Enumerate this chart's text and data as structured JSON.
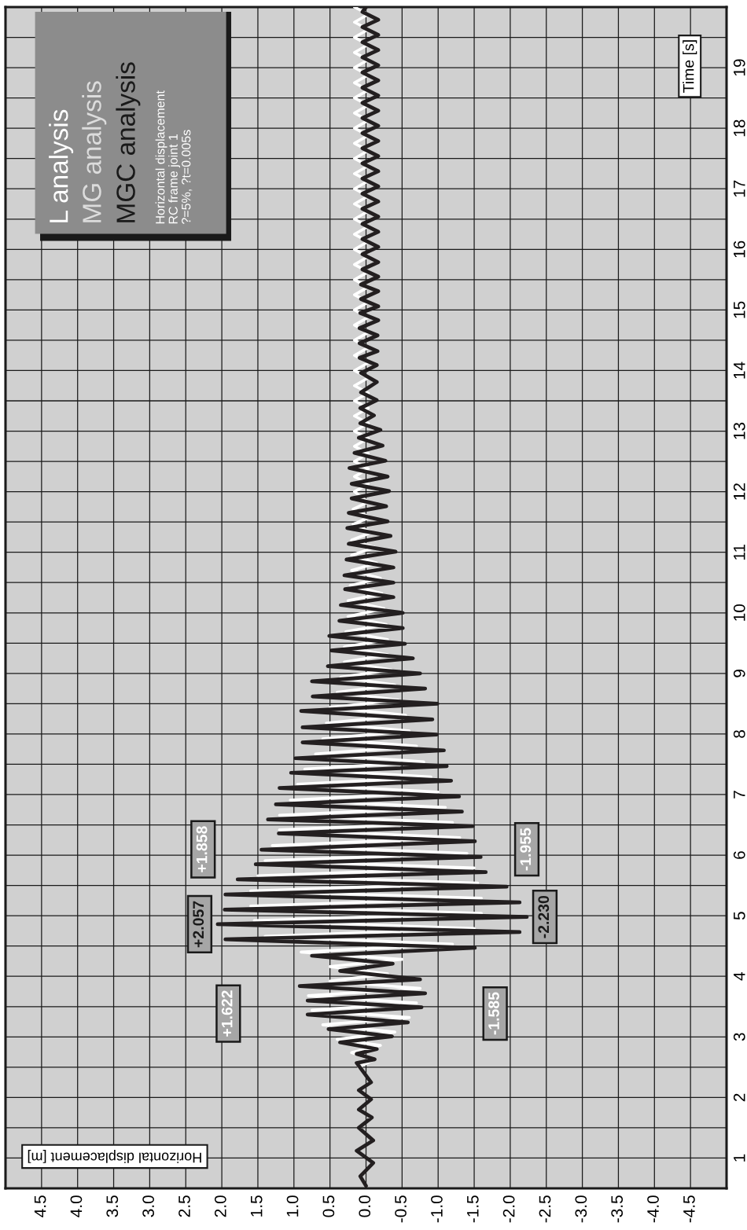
{
  "chart_data": {
    "type": "line",
    "xlabel": "Horizontal displacement [m]",
    "ylabel": "Time [s]",
    "xlim": [
      5,
      -5
    ],
    "ylim": [
      0.5,
      20
    ],
    "yticks": [
      1,
      {
        "value": 1.5,
        "label": null
      },
      2,
      {
        "value": 2.5,
        "label": null
      },
      3,
      {
        "value": 3.5,
        "label": null
      },
      4,
      {
        "value": 4.5,
        "label": null
      },
      5,
      {
        "value": 5.5,
        "label": null
      },
      6,
      {
        "value": 6.5,
        "label": null
      },
      7,
      {
        "value": 7.5,
        "label": null
      },
      8,
      {
        "value": 8.5,
        "label": null
      },
      9,
      {
        "value": 9.5,
        "label": null
      },
      10,
      {
        "value": 10.5,
        "label": null
      },
      11,
      {
        "value": 11.5,
        "label": null
      },
      12,
      {
        "value": 12.5,
        "label": null
      },
      13,
      {
        "value": 13.5,
        "label": null
      },
      14,
      {
        "value": 14.5,
        "label": null
      },
      15,
      {
        "value": 15.5,
        "label": null
      },
      16,
      {
        "value": 16.5,
        "label": null
      },
      17,
      {
        "value": 17.5,
        "label": null
      },
      18,
      {
        "value": 18.5,
        "label": null
      },
      19,
      {
        "value": 19.5,
        "label": null
      }
    ],
    "xticks": [
      -4.5,
      {
        "value": -4,
        "label": "-4.0"
      },
      -3.5,
      {
        "value": -3,
        "label": "-3.0"
      },
      -2.5,
      {
        "value": -2,
        "label": "-2.0"
      },
      -1.5,
      {
        "value": -1,
        "label": "-1.0"
      },
      -0.5,
      {
        "value": 0,
        "label": "0.0"
      },
      0.5,
      {
        "value": 1,
        "label": "1.0"
      },
      1.5,
      {
        "value": 2,
        "label": "2.0"
      },
      2.5,
      {
        "value": 3,
        "label": "3.0"
      },
      3.5,
      {
        "value": 4,
        "label": "4.0"
      },
      4.5
    ],
    "grid": true,
    "series": [
      {
        "color": "#ffffff",
        "values": [
          2.5,
          2.62,
          2.74,
          2.86,
          2.96,
          3.08,
          3.2,
          3.32,
          3.44,
          3.56,
          3.68,
          3.8,
          3.92,
          4.04,
          4.16,
          4.28,
          4.4,
          4.53,
          4.66,
          4.79,
          4.92,
          5.04,
          5.16,
          5.29,
          5.41,
          5.54,
          5.66,
          5.79,
          5.91,
          6.03,
          6.16,
          6.29,
          6.42,
          6.54,
          6.66,
          6.79,
          6.91,
          7.04,
          7.17,
          7.29,
          7.42,
          7.54,
          7.67,
          7.8,
          7.92,
          8.05,
          8.18,
          8.31,
          8.44,
          8.56,
          8.69,
          8.81,
          8.94,
          9.06,
          9.19,
          9.31,
          9.44,
          9.56,
          9.69,
          9.81,
          9.94,
          10.07,
          10.2,
          10.32,
          10.45,
          10.57,
          10.7,
          10.82,
          10.95,
          11.08,
          11.2,
          11.33,
          11.46,
          11.58,
          11.71,
          11.83,
          12.0,
          12.13,
          12.25,
          12.38,
          12.5,
          12.63,
          12.75,
          12.88,
          13.0,
          13.13,
          13.25,
          13.38,
          13.5,
          13.63,
          13.75,
          13.88,
          14.0,
          14.13,
          14.25,
          14.38,
          14.5,
          14.63,
          14.75,
          14.88,
          15.0,
          15.13,
          15.25,
          15.38,
          15.5,
          15.63,
          15.75,
          15.88,
          16.0,
          16.13,
          16.25,
          16.38,
          16.5,
          16.63,
          16.75,
          16.88,
          17.0,
          17.13,
          17.25,
          17.38,
          17.5,
          17.63,
          17.75,
          17.88,
          18.0,
          18.13,
          18.25,
          18.38,
          18.5,
          18.63,
          18.75,
          18.88,
          19.0,
          19.13,
          19.25,
          19.38,
          19.5,
          19.63,
          19.75,
          19.88,
          20.0
        ],
        "x": [
          0.1,
          -0.1,
          0.2,
          -0.2,
          0.4,
          -0.4,
          0.6,
          -0.6,
          0.75,
          -0.7,
          0.8,
          -0.75,
          0.5,
          -0.3,
          0.5,
          -0.5,
          0.9,
          -1.2,
          1.4,
          -1.5,
          1.55,
          -1.6,
          1.6,
          -1.6,
          1.6,
          -1.55,
          1.5,
          -1.5,
          1.4,
          -1.4,
          1.3,
          -1.3,
          1.2,
          -1.2,
          1.2,
          -1.1,
          1.05,
          -1.0,
          0.95,
          -0.9,
          0.85,
          -0.8,
          0.7,
          -0.7,
          0.6,
          -0.6,
          0.55,
          -0.55,
          0.5,
          -0.45,
          0.4,
          -0.4,
          0.35,
          -0.35,
          0.3,
          -0.3,
          0.3,
          -0.3,
          0.28,
          -0.28,
          0.25,
          -0.25,
          0.25,
          -0.22,
          0.22,
          -0.2,
          0.2,
          -0.15,
          0.2,
          -0.12,
          0.2,
          -0.08,
          0.18,
          -0.05,
          0.18,
          -0.03,
          0.16,
          -0.03,
          0.16,
          -0.03,
          0.16,
          -0.03,
          0.16,
          -0.03,
          0.16,
          -0.03,
          0.16,
          -0.03,
          0.16,
          -0.03,
          0.16,
          -0.03,
          0.16,
          -0.03,
          0.16,
          -0.03,
          0.16,
          -0.03,
          0.16,
          -0.03,
          0.16,
          -0.03,
          0.16,
          -0.03,
          0.16,
          -0.03,
          0.16,
          -0.03,
          0.16,
          -0.03,
          0.16,
          -0.03,
          0.16,
          -0.03,
          0.16,
          -0.03,
          0.16,
          -0.03,
          0.16,
          -0.03,
          0.16,
          -0.03,
          0.16,
          -0.03,
          0.16,
          -0.03,
          0.16,
          -0.03,
          0.16,
          -0.03,
          0.16,
          -0.03,
          0.16,
          -0.03,
          0.16,
          -0.03,
          0.16,
          -0.03,
          0.16,
          -0.03,
          0.16
        ]
      },
      {
        "color": "#231f20",
        "values": [
          0.54,
          0.7,
          0.92,
          1.12,
          1.29,
          1.5,
          1.67,
          1.8,
          1.97,
          2.12,
          2.25,
          2.57,
          2.63,
          2.72,
          2.8,
          2.91,
          3.01,
          3.13,
          3.24,
          3.37,
          3.49,
          3.6,
          3.72,
          3.84,
          3.95,
          4.09,
          4.21,
          4.34,
          4.47,
          4.61,
          4.73,
          4.86,
          4.98,
          5.1,
          5.22,
          5.35,
          5.48,
          5.6,
          5.72,
          5.85,
          5.97,
          6.09,
          6.23,
          6.36,
          6.48,
          6.59,
          6.72,
          6.84,
          6.97,
          7.11,
          7.23,
          7.36,
          7.47,
          7.6,
          7.73,
          7.86,
          7.99,
          8.11,
          8.24,
          8.38,
          8.5,
          8.62,
          8.75,
          8.87,
          9.0,
          9.12,
          9.25,
          9.38,
          9.49,
          9.62,
          9.75,
          9.87,
          10.0,
          10.13,
          10.26,
          10.39,
          10.5,
          10.62,
          10.75,
          10.88,
          11.01,
          11.14,
          11.27,
          11.4,
          11.51,
          11.65,
          11.76,
          11.89,
          12.01,
          12.13,
          12.25,
          12.39,
          12.51,
          12.64,
          12.76,
          12.89,
          13.02,
          13.13,
          13.26,
          13.38,
          13.51,
          13.64,
          13.81,
          13.96,
          14.09,
          14.21,
          14.32,
          14.45,
          14.58,
          14.7,
          14.83,
          14.95,
          15.06,
          15.18,
          15.31,
          15.42,
          15.55,
          15.67,
          15.79,
          15.92,
          16.04,
          16.17,
          16.29,
          16.42,
          16.54,
          16.67,
          16.79,
          16.92,
          17.04,
          17.17,
          17.29,
          17.42,
          17.54,
          17.67,
          17.79,
          17.92,
          18.04,
          18.17,
          18.29,
          18.42,
          18.54,
          18.67,
          18.79,
          18.92,
          19.04,
          19.17,
          19.29,
          19.42,
          19.54,
          19.67,
          19.79,
          19.92,
          20.0
        ],
        "x": [
          0,
          0.08,
          -0.1,
          0.13,
          -0.1,
          0.1,
          -0.08,
          0.1,
          -0.07,
          0.1,
          -0.07,
          0.13,
          -0.12,
          0.13,
          -0.15,
          0.36,
          -0.36,
          0.52,
          -0.58,
          0.81,
          -0.77,
          0.81,
          -0.82,
          0.92,
          -0.75,
          0.36,
          -0.37,
          0.75,
          -1.51,
          1.95,
          -2.13,
          2.057,
          -2.23,
          1.96,
          -2.13,
          1.95,
          -1.95,
          1.78,
          -1.66,
          1.53,
          -1.59,
          1.45,
          -1.51,
          1.21,
          -1.48,
          1.36,
          -1.33,
          1.25,
          -1.29,
          1.2,
          -1.18,
          1.04,
          -1.12,
          0.98,
          -1.08,
          0.88,
          -0.98,
          0.88,
          -0.92,
          0.9,
          -0.99,
          0.74,
          -0.82,
          0.75,
          -0.75,
          0.53,
          -0.65,
          0.48,
          -0.54,
          0.51,
          -0.51,
          0.37,
          -0.51,
          0.35,
          -0.38,
          0.29,
          -0.38,
          0.3,
          -0.38,
          0.27,
          -0.41,
          0.24,
          -0.34,
          0.26,
          -0.3,
          0.24,
          -0.28,
          0.2,
          -0.32,
          0.2,
          -0.3,
          0.23,
          -0.27,
          0.16,
          -0.23,
          0.1,
          -0.2,
          0.08,
          -0.11,
          0.08,
          -0.15,
          0.07,
          -0.15,
          0.07,
          -0.15,
          0.09,
          -0.16,
          0.09,
          -0.16,
          0.09,
          -0.17,
          0.08,
          -0.17,
          0.07,
          -0.17,
          0.07,
          -0.17,
          0.05,
          -0.17,
          0.05,
          -0.17,
          0.05,
          -0.17,
          0.05,
          -0.17,
          0.05,
          -0.17,
          0.05,
          -0.17,
          0.05,
          -0.17,
          0.05,
          -0.17,
          0.05,
          -0.17,
          0.05,
          -0.17,
          0.05,
          -0.17,
          0.05,
          -0.17,
          0.05,
          -0.17,
          0.05,
          -0.17,
          0.05,
          -0.17,
          0.05,
          -0.17,
          0.05,
          -0.17,
          0.05,
          0
        ]
      }
    ],
    "annotations": [
      "+1.622",
      "-1.585",
      {
        "text": "+2.057",
        "x": 2.057,
        "y": 4.86
      },
      {
        "text": "-2.230",
        "x": -2.23,
        "y": 4.98
      },
      "+1.858",
      "-1.955",
      "L analysis",
      "MG analysis",
      "MGC analysis",
      "Horizontal displacement",
      "RC frame joint 1",
      "?=5%, ?t=0.005s"
    ]
  }
}
